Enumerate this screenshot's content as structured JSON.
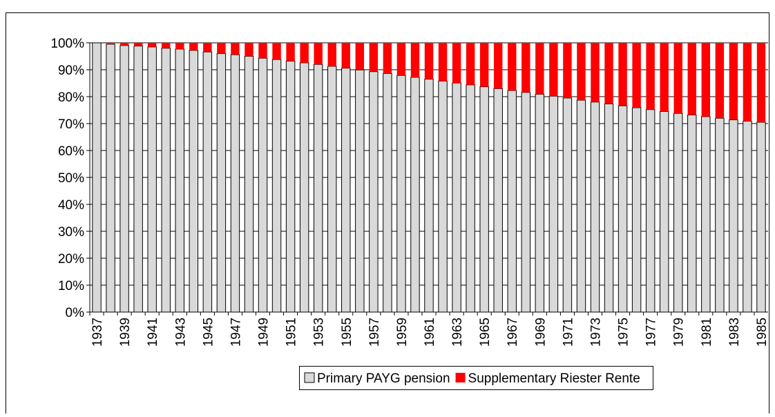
{
  "chart_data": {
    "type": "stacked-bar",
    "categories": [
      "1937",
      null,
      "1939",
      null,
      "1941",
      null,
      "1943",
      null,
      "1945",
      null,
      "1947",
      null,
      "1949",
      null,
      "1951",
      null,
      "1953",
      null,
      "1955",
      null,
      "1957",
      null,
      "1959",
      null,
      "1961",
      null,
      "1963",
      null,
      "1965",
      null,
      "1967",
      null,
      "1969",
      null,
      "1971",
      null,
      "1973",
      null,
      "1975",
      null,
      "1977",
      null,
      "1979",
      null,
      "1981",
      null,
      "1983",
      null,
      "1985"
    ],
    "series": [
      {
        "name": "Primary PAYG pension",
        "color": "#d9d9d9",
        "values": [
          100,
          99.5,
          99,
          98.8,
          98.5,
          98,
          97.7,
          97.2,
          96.6,
          96,
          95.6,
          95,
          94.3,
          93.8,
          93.2,
          92.6,
          92,
          91.3,
          90.6,
          89.9,
          89.3,
          88.6,
          87.9,
          87.2,
          86.5,
          85.8,
          85.1,
          84.4,
          83.7,
          83,
          82.3,
          81.6,
          80.9,
          80.2,
          79.5,
          78.7,
          78,
          77.3,
          76.6,
          75.9,
          75.2,
          74.5,
          73.8,
          73.2,
          72.6,
          72,
          71.4,
          70.9,
          70.5
        ]
      },
      {
        "name": "Supplementary Riester Rente",
        "color": "#ff0000",
        "values": [
          0,
          0.5,
          1,
          1.2,
          1.5,
          2,
          2.3,
          2.8,
          3.4,
          4,
          4.4,
          5,
          5.7,
          6.2,
          6.8,
          7.4,
          8,
          8.7,
          9.4,
          10.1,
          10.7,
          11.4,
          12.1,
          12.8,
          13.5,
          14.2,
          14.9,
          15.6,
          16.3,
          17,
          17.7,
          18.4,
          19.1,
          19.8,
          20.5,
          21.3,
          22,
          22.7,
          23.4,
          24.1,
          24.8,
          25.5,
          26.2,
          26.8,
          27.4,
          28,
          28.6,
          29.1,
          29.5
        ]
      }
    ],
    "ylim": [
      0,
      100
    ],
    "yticks": [
      {
        "value": 0,
        "label": "0%"
      },
      {
        "value": 10,
        "label": "10%"
      },
      {
        "value": 20,
        "label": "20%"
      },
      {
        "value": 30,
        "label": "30%"
      },
      {
        "value": 40,
        "label": "40%"
      },
      {
        "value": 50,
        "label": "50%"
      },
      {
        "value": 60,
        "label": "60%"
      },
      {
        "value": 70,
        "label": "70%"
      },
      {
        "value": 80,
        "label": "80%"
      },
      {
        "value": 90,
        "label": "90%"
      },
      {
        "value": 100,
        "label": "100%"
      }
    ],
    "grid": true,
    "legend": "bottom"
  }
}
